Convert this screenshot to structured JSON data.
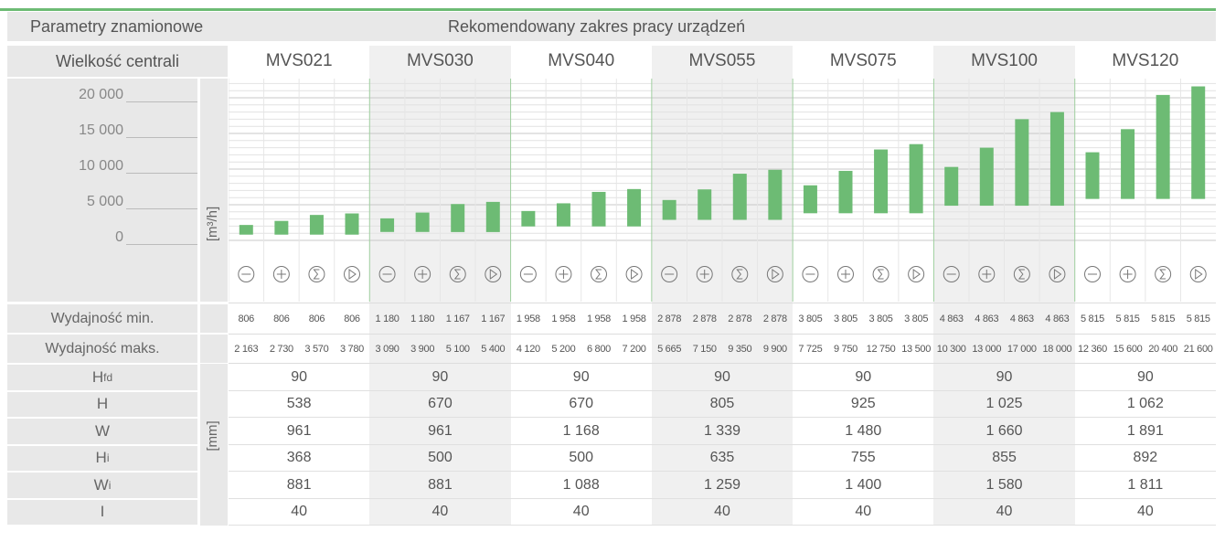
{
  "header": {
    "left": "Parametry znamionowe",
    "right": "Rekomendowany zakres pracy urządzeń"
  },
  "size_label": "Wielkość centrali",
  "models": [
    "MVS021",
    "MVS030",
    "MVS040",
    "MVS055",
    "MVS075",
    "MVS100",
    "MVS120"
  ],
  "chart_unit": "[m³/h]",
  "dims_unit": "[mm]",
  "rows": {
    "min_label": "Wydajność min.",
    "max_label": "Wydajność maks."
  },
  "fan_icons": [
    "minus-circle-icon",
    "plus-circle-icon",
    "sigma-circle-icon",
    "play-circle-icon"
  ],
  "colors": {
    "bar": "#6dbb74",
    "header_bg": "#e8e8e8",
    "accent_line": "#6dbb74"
  },
  "chart_data": {
    "type": "bar",
    "title": "",
    "ylabel": "[m³/h]",
    "ylim": [
      0,
      21600
    ],
    "yticks": [
      {
        "value": 0,
        "label": "0"
      },
      {
        "value": 5000,
        "label": "5 000"
      },
      {
        "value": 10000,
        "label": "10 000"
      },
      {
        "value": 15000,
        "label": "15 000"
      },
      {
        "value": 20000,
        "label": "20 000"
      }
    ],
    "groups": [
      {
        "model": "MVS021",
        "min": [
          806,
          806,
          806,
          806
        ],
        "max": [
          2163,
          2730,
          3570,
          3780
        ],
        "min_labels": [
          "806",
          "806",
          "806",
          "806"
        ],
        "max_labels": [
          "2 163",
          "2 730",
          "3 570",
          "3 780"
        ]
      },
      {
        "model": "MVS030",
        "min": [
          1180,
          1180,
          1167,
          1167
        ],
        "max": [
          3090,
          3900,
          5100,
          5400
        ],
        "min_labels": [
          "1 180",
          "1 180",
          "1 167",
          "1 167"
        ],
        "max_labels": [
          "3 090",
          "3 900",
          "5 100",
          "5 400"
        ]
      },
      {
        "model": "MVS040",
        "min": [
          1958,
          1958,
          1958,
          1958
        ],
        "max": [
          4120,
          5200,
          6800,
          7200
        ],
        "min_labels": [
          "1 958",
          "1 958",
          "1 958",
          "1 958"
        ],
        "max_labels": [
          "4 120",
          "5 200",
          "6 800",
          "7 200"
        ]
      },
      {
        "model": "MVS055",
        "min": [
          2878,
          2878,
          2878,
          2878
        ],
        "max": [
          5665,
          7150,
          9350,
          9900
        ],
        "min_labels": [
          "2 878",
          "2 878",
          "2 878",
          "2 878"
        ],
        "max_labels": [
          "5 665",
          "7 150",
          "9 350",
          "9 900"
        ]
      },
      {
        "model": "MVS075",
        "min": [
          3805,
          3805,
          3805,
          3805
        ],
        "max": [
          7725,
          9750,
          12750,
          13500
        ],
        "min_labels": [
          "3 805",
          "3 805",
          "3 805",
          "3 805"
        ],
        "max_labels": [
          "7 725",
          "9 750",
          "12 750",
          "13 500"
        ]
      },
      {
        "model": "MVS100",
        "min": [
          4863,
          4863,
          4863,
          4863
        ],
        "max": [
          10300,
          13000,
          17000,
          18000
        ],
        "min_labels": [
          "4 863",
          "4 863",
          "4 863",
          "4 863"
        ],
        "max_labels": [
          "10 300",
          "13 000",
          "17 000",
          "18 000"
        ]
      },
      {
        "model": "MVS120",
        "min": [
          5815,
          5815,
          5815,
          5815
        ],
        "max": [
          12360,
          15600,
          20400,
          21600
        ],
        "min_labels": [
          "5 815",
          "5 815",
          "5 815",
          "5 815"
        ],
        "max_labels": [
          "12 360",
          "15 600",
          "20 400",
          "21 600"
        ]
      }
    ]
  },
  "dimensions": [
    {
      "label": "H",
      "sub": "fd",
      "values": [
        "90",
        "90",
        "90",
        "90",
        "90",
        "90",
        "90"
      ]
    },
    {
      "label": "H",
      "sub": "",
      "values": [
        "538",
        "670",
        "670",
        "805",
        "925",
        "1 025",
        "1 062"
      ]
    },
    {
      "label": "W",
      "sub": "",
      "values": [
        "961",
        "961",
        "1 168",
        "1 339",
        "1 480",
        "1 660",
        "1 891"
      ]
    },
    {
      "label": "H",
      "sub": "i",
      "values": [
        "368",
        "500",
        "500",
        "635",
        "755",
        "855",
        "892"
      ]
    },
    {
      "label": "W",
      "sub": "i",
      "values": [
        "881",
        "881",
        "1 088",
        "1 259",
        "1 400",
        "1 580",
        "1 811"
      ]
    },
    {
      "label": "I",
      "sub": "",
      "values": [
        "40",
        "40",
        "40",
        "40",
        "40",
        "40",
        "40"
      ]
    }
  ]
}
